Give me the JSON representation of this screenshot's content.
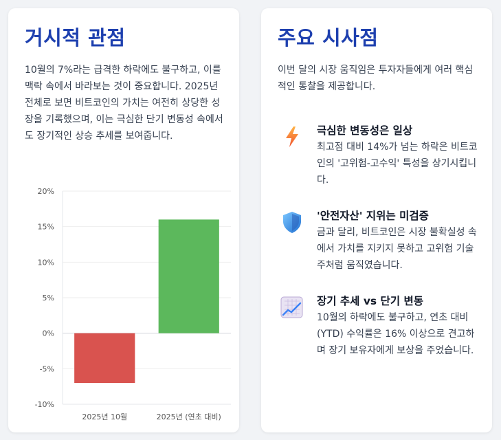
{
  "left_card": {
    "title": "거시적 관점",
    "body": "10월의 7%라는 급격한 하락에도 불구하고, 이를 맥락 속에서 바라보는 것이 중요합니다. 2025년 전체로 보면 비트코인의 가치는 여전히 상당한 성장을 기록했으며, 이는 극심한 단기 변동성 속에서도 장기적인 상승 추세를 보여줍니다."
  },
  "chart_data": {
    "type": "bar",
    "categories": [
      "2025년 10월",
      "2025년 (연초 대비)"
    ],
    "values": [
      -7,
      16
    ],
    "colors": [
      "#d9534f",
      "#5cb85c"
    ],
    "ylim": [
      -10,
      20
    ],
    "yticks": [
      -10,
      -5,
      0,
      5,
      10,
      15,
      20
    ],
    "ytick_labels": [
      "-10%",
      "-5%",
      "0%",
      "5%",
      "10%",
      "15%",
      "20%"
    ],
    "grid": true
  },
  "right_card": {
    "title": "주요 시사점",
    "intro": "이번 달의 시장 움직임은 투자자들에게 여러 핵심적인 통찰을 제공합니다.",
    "insights": [
      {
        "icon": "lightning-icon",
        "title": "극심한 변동성은 일상",
        "text": "최고점 대비 14%가 넘는 하락은 비트코인의 '고위험-고수익' 특성을 상기시킵니다."
      },
      {
        "icon": "shield-icon",
        "title": "'안전자산' 지위는 미검증",
        "text": "금과 달리, 비트코인은 시장 불확실성 속에서 가치를 지키지 못하고 고위험 기술주처럼 움직였습니다."
      },
      {
        "icon": "trend-chart-icon",
        "title": "장기 추세 vs 단기 변동",
        "text": "10월의 하락에도 불구하고, 연초 대비(YTD) 수익률은 16% 이상으로 견고하며 장기 보유자에게 보상을 주었습니다."
      }
    ]
  }
}
